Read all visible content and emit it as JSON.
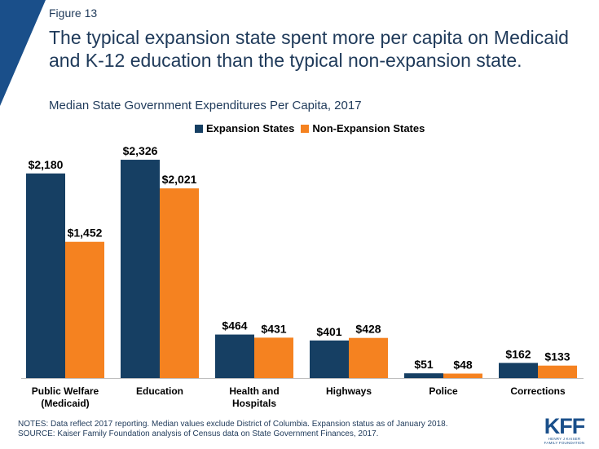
{
  "figure_label": "Figure 13",
  "title": "The typical expansion state spent more per capita on Medicaid and K-12 education than the typical non-expansion state.",
  "subtitle": "Median State Government Expenditures Per Capita, 2017",
  "notes": {
    "line1": "NOTES: Data reflect 2017 reporting. Median values exclude District of Columbia. Expansion status as of January 2018.",
    "line2": "SOURCE: Kaiser Family Foundation analysis of Census data on State Government Finances, 2017."
  },
  "logo": {
    "main": "KFF",
    "sub1": "HENRY J KAISER",
    "sub2": "FAMILY FOUNDATION"
  },
  "colors": {
    "expansion": "#163f63",
    "non_expansion": "#f58220",
    "brand": "#1a4f8a"
  },
  "chart_data": {
    "type": "bar",
    "categories": [
      [
        "Public Welfare",
        "(Medicaid)"
      ],
      [
        "Education"
      ],
      [
        "Health and",
        "Hospitals"
      ],
      [
        "Highways"
      ],
      [
        "Police"
      ],
      [
        "Corrections"
      ]
    ],
    "series": [
      {
        "name": "Expansion States",
        "values": [
          2180,
          2326,
          464,
          401,
          51,
          162
        ],
        "labels": [
          "$2,180",
          "$2,326",
          "$464",
          "$401",
          "$51",
          "$162"
        ]
      },
      {
        "name": "Non-Expansion States",
        "values": [
          1452,
          2021,
          431,
          428,
          48,
          133
        ],
        "labels": [
          "$1,452",
          "$2,021",
          "$431",
          "$428",
          "$48",
          "$133"
        ]
      }
    ],
    "ylim": [
      0,
      2500
    ],
    "grid": false,
    "legend_position": "top"
  }
}
